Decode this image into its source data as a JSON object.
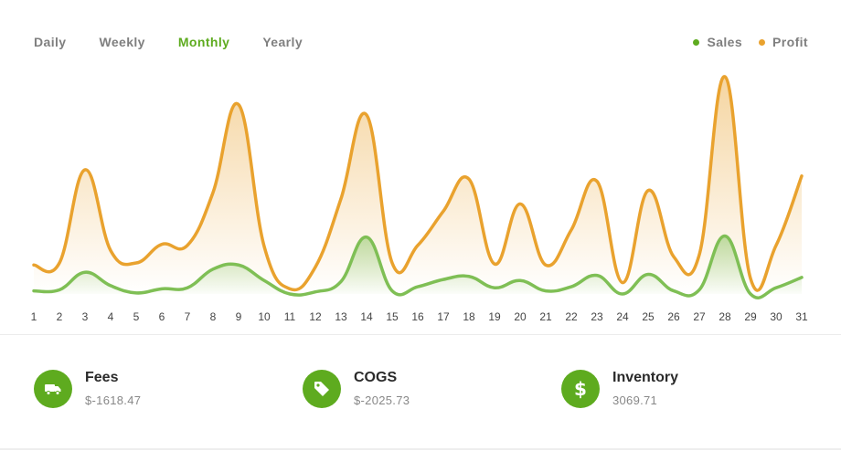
{
  "tabs": [
    {
      "label": "Daily",
      "active": false
    },
    {
      "label": "Weekly",
      "active": false
    },
    {
      "label": "Monthly",
      "active": true
    },
    {
      "label": "Yearly",
      "active": false
    }
  ],
  "legend": [
    {
      "label": "Sales",
      "color": "#5eab1f"
    },
    {
      "label": "Profit",
      "color": "#e9a22e"
    }
  ],
  "chart_data": {
    "type": "area",
    "x": [
      "1",
      "2",
      "3",
      "4",
      "5",
      "6",
      "7",
      "8",
      "9",
      "10",
      "11",
      "12",
      "13",
      "14",
      "15",
      "16",
      "17",
      "18",
      "19",
      "20",
      "21",
      "22",
      "23",
      "24",
      "25",
      "26",
      "27",
      "28",
      "29",
      "30",
      "31"
    ],
    "ylim": [
      0,
      240
    ],
    "grid": false,
    "legend_position": "top-right",
    "series": [
      {
        "name": "Profit",
        "color": "#e9a22e",
        "values": [
          28,
          30,
          120,
          42,
          30,
          48,
          47,
          98,
          183,
          46,
          5,
          26,
          92,
          173,
          30,
          47,
          80,
          111,
          29,
          87,
          28,
          62,
          109,
          11,
          100,
          36,
          38,
          210,
          15,
          47,
          114
        ]
      },
      {
        "name": "Sales",
        "color": "#7fbf55",
        "values": [
          3,
          4,
          21,
          8,
          1,
          5,
          6,
          24,
          28,
          13,
          0,
          2,
          12,
          55,
          3,
          7,
          14,
          17,
          6,
          13,
          3,
          7,
          18,
          0,
          19,
          3,
          4,
          56,
          0,
          6,
          16
        ]
      }
    ]
  },
  "stats": [
    {
      "label": "Fees",
      "value": "$-1618.47",
      "icon": "truck-icon"
    },
    {
      "label": "COGS",
      "value": "$-2025.73",
      "icon": "tag-icon"
    },
    {
      "label": "Inventory",
      "value": "3069.71",
      "icon": "dollar-icon"
    }
  ]
}
